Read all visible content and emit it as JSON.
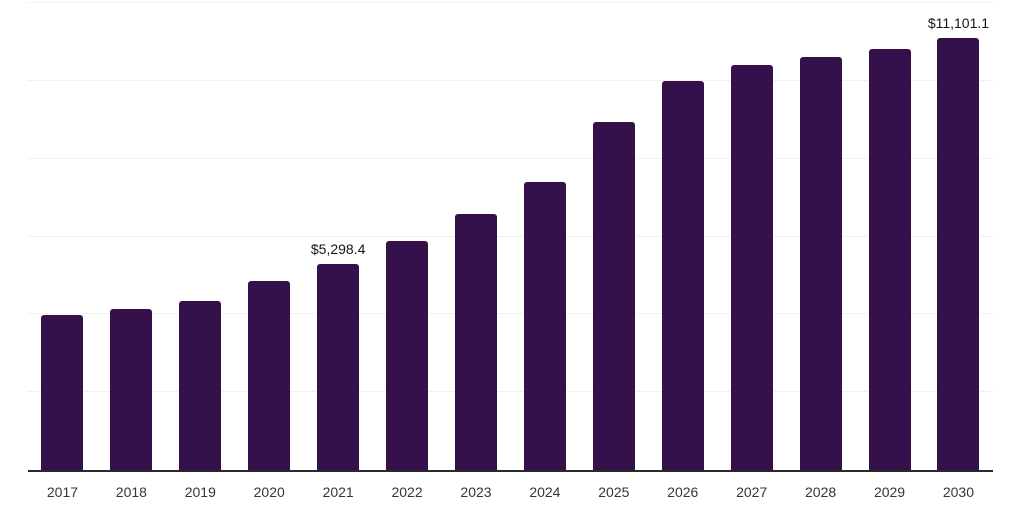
{
  "chart_data": {
    "type": "bar",
    "categories": [
      "2017",
      "2018",
      "2019",
      "2020",
      "2021",
      "2022",
      "2023",
      "2024",
      "2025",
      "2026",
      "2027",
      "2028",
      "2029",
      "2030"
    ],
    "values": [
      3995,
      4150,
      4340,
      4850,
      5298.4,
      5880,
      6570,
      7410,
      8930,
      10000,
      10400,
      10610,
      10810,
      11101.1
    ],
    "data_labels": [
      "",
      "",
      "",
      "",
      "$5,298.4",
      "",
      "",
      "",
      "",
      "",
      "",
      "",
      "",
      "$11,101.1"
    ],
    "ylim": [
      0,
      12000
    ],
    "gridline_interval": 2000,
    "grid": true,
    "legend": false,
    "colors": {
      "bar": "#35114C",
      "background": "#ffffff",
      "gridline": "#f1f1f1",
      "axis_line": "#29292e",
      "tick_label": "#363636",
      "data_label": "#151515"
    }
  }
}
